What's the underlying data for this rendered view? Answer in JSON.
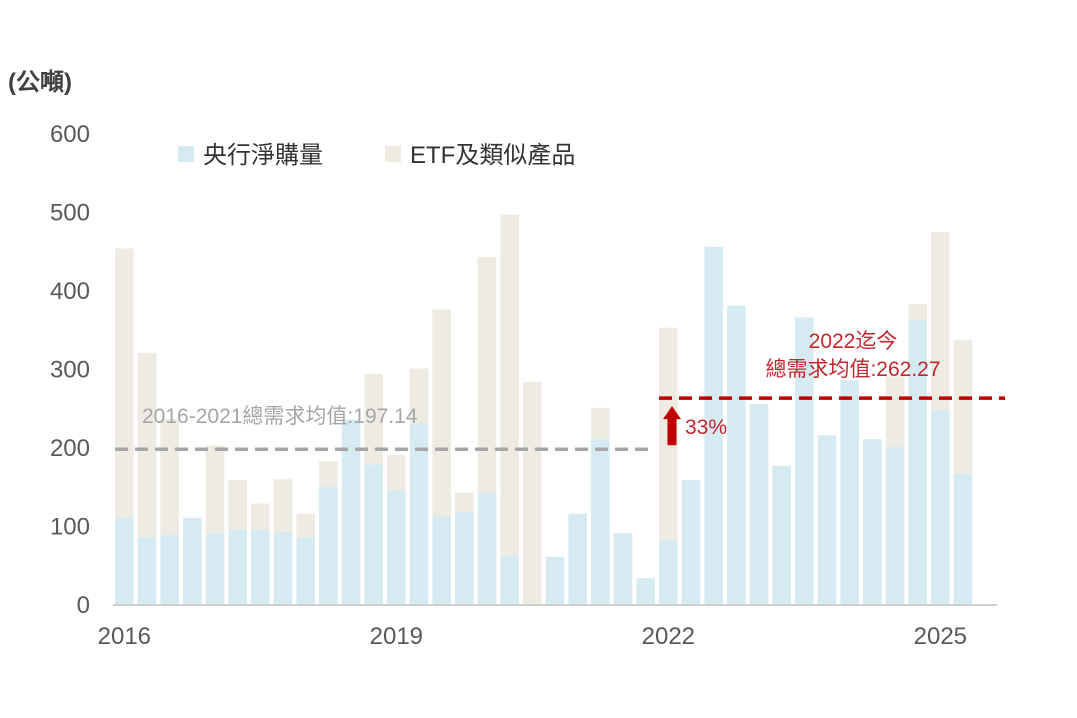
{
  "chart_data": {
    "type": "bar",
    "stacked": true,
    "ylabel": "(公噸)",
    "ylim": [
      0,
      600
    ],
    "yticks": [
      0,
      100,
      200,
      300,
      400,
      500,
      600
    ],
    "x_tick_labels": [
      {
        "label": "2016",
        "at_index": 0
      },
      {
        "label": "2019",
        "at_index": 12
      },
      {
        "label": "2022",
        "at_index": 24
      },
      {
        "label": "2025",
        "at_index": 36
      }
    ],
    "categories": [
      "2016Q1",
      "2016Q2",
      "2016Q3",
      "2016Q4",
      "2017Q1",
      "2017Q2",
      "2017Q3",
      "2017Q4",
      "2018Q1",
      "2018Q2",
      "2018Q3",
      "2018Q4",
      "2019Q1",
      "2019Q2",
      "2019Q3",
      "2019Q4",
      "2020Q1",
      "2020Q2",
      "2020Q3",
      "2020Q4",
      "2021Q1",
      "2021Q2",
      "2021Q3",
      "2021Q4",
      "2022Q1",
      "2022Q2",
      "2022Q3",
      "2022Q4",
      "2023Q1",
      "2023Q2",
      "2023Q3",
      "2023Q4",
      "2024Q1",
      "2024Q2",
      "2024Q3",
      "2024Q4",
      "2025Q1",
      "2025Q2",
      "2025Q3"
    ],
    "series": [
      {
        "name": "央行淨購量",
        "color": "#d6ebf1",
        "values": [
          110,
          85,
          88,
          110,
          90,
          95,
          95,
          92,
          85,
          150,
          235,
          178,
          145,
          230,
          112,
          117,
          142,
          62,
          0,
          60,
          115,
          210,
          90,
          33,
          82,
          158,
          455,
          380,
          255,
          176,
          365,
          215,
          285,
          210,
          200,
          362,
          247,
          166,
          0
        ]
      },
      {
        "name": "ETF及類似產品",
        "color": "#eeebe3",
        "values": [
          343,
          235,
          148,
          0,
          112,
          63,
          33,
          67,
          30,
          32,
          0,
          115,
          45,
          70,
          263,
          25,
          300,
          434,
          283,
          0,
          0,
          40,
          0,
          0,
          270,
          0,
          0,
          0,
          0,
          0,
          0,
          0,
          0,
          0,
          90,
          20,
          227,
          170,
          0
        ]
      }
    ],
    "legend_position": "top-left",
    "grid": false,
    "annotations": {
      "avg_2016_2021": {
        "label": "2016-2021總需求均值:197.14",
        "value": 197.14,
        "color": "#a6a6a6"
      },
      "avg_2022_now": {
        "label_line1": "2022迄今",
        "label_line2": "總需求均值:262.27",
        "value": 262.27,
        "color": "#c00000"
      },
      "growth": {
        "label": "33%",
        "color": "#c00000"
      }
    }
  }
}
